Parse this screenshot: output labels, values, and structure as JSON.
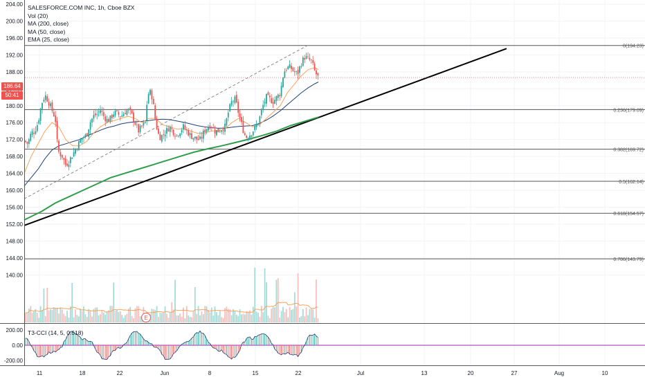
{
  "legend": {
    "symbol": "SALESFORCE.COM INC, 1h, Cboe BZX",
    "volume": "Vol (20)",
    "ma200": "MA (200, close)",
    "ma50": "MA (50, close)",
    "ema25": "EMA (25, close)"
  },
  "price_tag": {
    "price": "186.64",
    "countdown": "50:41"
  },
  "indicator": {
    "label": "T3-CCI (14, 5, 0.618)",
    "ticks": [
      "200.00",
      "0.00",
      "-200.00"
    ]
  },
  "event_marker": "E",
  "colors": {
    "up": "#26a69a",
    "down": "#ef5350",
    "ema": "#f7a35c",
    "ma50": "#1f3f7a",
    "ma200": "#2e9e4a",
    "trendline": "#000000",
    "fib": "#555555"
  },
  "chart_data": {
    "type": "candlestick",
    "y_axis": {
      "ticks": [
        "204.00",
        "200.00",
        "196.00",
        "192.00",
        "188.00",
        "184.00",
        "180.00",
        "176.00",
        "172.00",
        "168.00",
        "164.00",
        "160.00",
        "156.00",
        "152.00",
        "148.00",
        "144.00",
        "140.00"
      ],
      "range": [
        138,
        205
      ]
    },
    "x_axis": {
      "ticks": [
        "11",
        "18",
        "22",
        "Jun",
        "8",
        "15",
        "22",
        "Jul",
        "13",
        "20",
        "27",
        "Aug",
        "10"
      ]
    },
    "fib_levels": [
      {
        "label": "0(194.23)",
        "value": 194.23
      },
      {
        "label": "0.236(179.09)",
        "value": 179.09
      },
      {
        "label": "0.382(169.72)",
        "value": 169.72
      },
      {
        "label": "0.5(162.14)",
        "value": 162.14
      },
      {
        "label": "0.618(154.57)",
        "value": 154.57
      },
      {
        "label": "0.786(143.79)",
        "value": 143.79
      }
    ],
    "trendline": {
      "from": [
        35,
        151.7
      ],
      "to": [
        732,
        193.5
      ]
    },
    "channel_line": {
      "from": [
        35,
        158
      ],
      "to": [
        445,
        194.3
      ]
    },
    "current_price": 186.64,
    "price_path": [
      [
        35,
        171.8
      ],
      [
        40,
        171
      ],
      [
        45,
        173.5
      ],
      [
        50,
        174
      ],
      [
        55,
        176
      ],
      [
        60,
        180.5
      ],
      [
        65,
        182.5
      ],
      [
        70,
        181
      ],
      [
        75,
        179
      ],
      [
        80,
        177
      ],
      [
        82,
        172
      ],
      [
        85,
        169
      ],
      [
        90,
        168
      ],
      [
        95,
        166
      ],
      [
        100,
        167
      ],
      [
        105,
        168.5
      ],
      [
        110,
        170
      ],
      [
        115,
        171.5
      ],
      [
        120,
        172.5
      ],
      [
        125,
        173
      ],
      [
        130,
        176
      ],
      [
        135,
        177.5
      ],
      [
        140,
        178
      ],
      [
        145,
        179
      ],
      [
        150,
        177.5
      ],
      [
        155,
        176.5
      ],
      [
        160,
        177
      ],
      [
        165,
        178.5
      ],
      [
        170,
        178
      ],
      [
        175,
        177.5
      ],
      [
        180,
        178.5
      ],
      [
        185,
        179
      ],
      [
        190,
        178
      ],
      [
        195,
        176
      ],
      [
        200,
        174
      ],
      [
        205,
        175
      ],
      [
        210,
        176
      ],
      [
        213,
        182
      ],
      [
        216,
        183.5
      ],
      [
        220,
        182
      ],
      [
        225,
        176
      ],
      [
        230,
        172.5
      ],
      [
        235,
        173
      ],
      [
        240,
        174
      ],
      [
        245,
        175
      ],
      [
        250,
        174
      ],
      [
        255,
        173
      ],
      [
        260,
        174
      ],
      [
        265,
        175
      ],
      [
        270,
        174
      ],
      [
        275,
        173
      ],
      [
        280,
        172.5
      ],
      [
        285,
        172
      ],
      [
        290,
        172
      ],
      [
        295,
        174
      ],
      [
        300,
        175
      ],
      [
        305,
        175.5
      ],
      [
        310,
        174
      ],
      [
        315,
        174
      ],
      [
        320,
        174.5
      ],
      [
        325,
        175
      ],
      [
        330,
        178.5
      ],
      [
        335,
        181
      ],
      [
        340,
        181.5
      ],
      [
        345,
        178
      ],
      [
        350,
        175
      ],
      [
        355,
        172.5
      ],
      [
        360,
        173
      ],
      [
        365,
        174
      ],
      [
        370,
        175
      ],
      [
        375,
        177
      ],
      [
        380,
        180
      ],
      [
        385,
        182
      ],
      [
        390,
        181.5
      ],
      [
        395,
        181
      ],
      [
        400,
        182
      ],
      [
        405,
        183
      ],
      [
        410,
        188
      ],
      [
        415,
        189
      ],
      [
        420,
        189
      ],
      [
        425,
        188
      ],
      [
        430,
        187.5
      ],
      [
        435,
        190
      ],
      [
        440,
        191.5
      ],
      [
        445,
        191
      ],
      [
        450,
        190.5
      ],
      [
        455,
        188
      ],
      [
        460,
        186.6
      ]
    ],
    "ema25": [
      [
        35,
        164
      ],
      [
        45,
        168
      ],
      [
        55,
        171
      ],
      [
        65,
        174
      ],
      [
        75,
        176
      ],
      [
        85,
        175
      ],
      [
        95,
        172
      ],
      [
        105,
        170.5
      ],
      [
        115,
        170.5
      ],
      [
        125,
        171.5
      ],
      [
        135,
        173.5
      ],
      [
        145,
        175
      ],
      [
        155,
        176
      ],
      [
        165,
        176.5
      ],
      [
        175,
        177
      ],
      [
        185,
        177.5
      ],
      [
        195,
        177
      ],
      [
        205,
        176
      ],
      [
        215,
        177
      ],
      [
        225,
        177
      ],
      [
        235,
        175.5
      ],
      [
        245,
        175
      ],
      [
        255,
        174.5
      ],
      [
        265,
        174.5
      ],
      [
        275,
        174
      ],
      [
        285,
        173.5
      ],
      [
        295,
        173.5
      ],
      [
        305,
        174
      ],
      [
        315,
        174
      ],
      [
        325,
        174.5
      ],
      [
        335,
        176
      ],
      [
        345,
        177
      ],
      [
        355,
        176
      ],
      [
        365,
        175
      ],
      [
        375,
        175.5
      ],
      [
        385,
        177
      ],
      [
        395,
        178.5
      ],
      [
        405,
        180
      ],
      [
        415,
        183
      ],
      [
        425,
        185
      ],
      [
        435,
        187
      ],
      [
        445,
        188.5
      ],
      [
        455,
        189
      ],
      [
        460,
        188.5
      ]
    ],
    "ma50": [
      [
        35,
        161
      ],
      [
        45,
        163
      ],
      [
        55,
        165
      ],
      [
        65,
        167.5
      ],
      [
        75,
        169.5
      ],
      [
        85,
        170.5
      ],
      [
        95,
        171
      ],
      [
        105,
        171.5
      ],
      [
        115,
        172
      ],
      [
        125,
        172.8
      ],
      [
        135,
        173.5
      ],
      [
        145,
        174.2
      ],
      [
        155,
        174.8
      ],
      [
        165,
        175.2
      ],
      [
        175,
        175.7
      ],
      [
        185,
        176
      ],
      [
        195,
        176.2
      ],
      [
        205,
        176.3
      ],
      [
        215,
        176.5
      ],
      [
        225,
        176.7
      ],
      [
        235,
        176.8
      ],
      [
        245,
        176.7
      ],
      [
        255,
        176.4
      ],
      [
        265,
        176.1
      ],
      [
        275,
        175.7
      ],
      [
        285,
        175.3
      ],
      [
        295,
        175
      ],
      [
        305,
        174.8
      ],
      [
        315,
        174.7
      ],
      [
        325,
        174.7
      ],
      [
        335,
        174.9
      ],
      [
        345,
        175.1
      ],
      [
        355,
        175.2
      ],
      [
        365,
        175.3
      ],
      [
        375,
        175.8
      ],
      [
        385,
        176.6
      ],
      [
        395,
        177.6
      ],
      [
        405,
        178.8
      ],
      [
        415,
        180.2
      ],
      [
        425,
        181.6
      ],
      [
        435,
        183
      ],
      [
        445,
        184.2
      ],
      [
        455,
        185.2
      ],
      [
        460,
        185.6
      ]
    ],
    "ma200": [
      [
        35,
        153
      ],
      [
        60,
        155
      ],
      [
        80,
        157
      ],
      [
        100,
        158.5
      ],
      [
        120,
        160
      ],
      [
        140,
        161.5
      ],
      [
        160,
        163
      ],
      [
        180,
        164
      ],
      [
        200,
        165
      ],
      [
        220,
        166
      ],
      [
        240,
        167
      ],
      [
        260,
        168
      ],
      [
        280,
        169
      ],
      [
        300,
        169.8
      ],
      [
        320,
        170.5
      ],
      [
        340,
        171.3
      ],
      [
        360,
        172.1
      ],
      [
        380,
        173
      ],
      [
        400,
        174
      ],
      [
        420,
        175.3
      ],
      [
        440,
        176.3
      ],
      [
        460,
        177.3
      ]
    ]
  }
}
